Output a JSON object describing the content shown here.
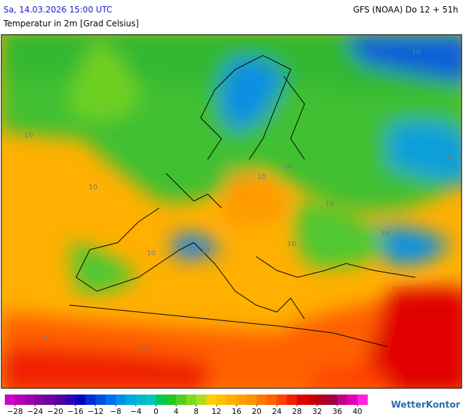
{
  "header": {
    "date": "Sa, 14.03.2026 15:00 UTC",
    "model": "GFS (NOAA) Do 12 + 51h",
    "parameter": "Temperatur in 2m [Grad Celsius]"
  },
  "map": {
    "contour_labels": [
      "10",
      "10",
      "10",
      "10",
      "10",
      "10",
      "10",
      "10",
      "10",
      "10",
      "10",
      "10",
      "10"
    ]
  },
  "colorbar": {
    "min": -30,
    "max": 42,
    "step": 2,
    "colors": [
      "#cc00cc",
      "#b300b3",
      "#9900aa",
      "#8000a0",
      "#6a00a0",
      "#5000a0",
      "#3000b0",
      "#0000c8",
      "#0030d8",
      "#0050e0",
      "#0070e8",
      "#0090e8",
      "#00a8e0",
      "#00b8d0",
      "#00c8c0",
      "#00c850",
      "#20c820",
      "#50d020",
      "#80d820",
      "#a8e020",
      "#ffd000",
      "#ffc000",
      "#ffb000",
      "#ffa000",
      "#ff9000",
      "#ff7800",
      "#ff6000",
      "#ff4000",
      "#f02000",
      "#e00000",
      "#c80000",
      "#b00020",
      "#a00040",
      "#c00080",
      "#e000b0",
      "#ff20e0"
    ],
    "ticks": [
      {
        "value": -28,
        "label": "−28"
      },
      {
        "value": -24,
        "label": "−24"
      },
      {
        "value": -20,
        "label": "−20"
      },
      {
        "value": -16,
        "label": "−16"
      },
      {
        "value": -12,
        "label": "−12"
      },
      {
        "value": -8,
        "label": "−8"
      },
      {
        "value": -4,
        "label": "−4"
      },
      0,
      4,
      8,
      12,
      16,
      20,
      24,
      28,
      32,
      36,
      40
    ]
  },
  "logo": "WetterKontor"
}
